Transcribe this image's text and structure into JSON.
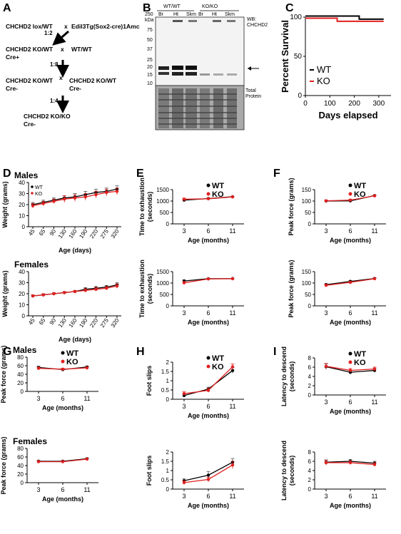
{
  "panels": {
    "A": "A",
    "B": "B",
    "C": "C",
    "D": "D",
    "E": "E",
    "F": "F",
    "G": "G",
    "H": "H",
    "I": "I"
  },
  "scheme": {
    "row1_left": "CHCHD2 lox/WT",
    "row1_x": "x",
    "row1_right": "Edil3Tg(Sox2-cre)1Amc",
    "ratio1": "1:2",
    "row2_left": "CHCHD2 KO/WT",
    "row2_x": "x",
    "row2_right": "WT/WT",
    "row2_left_sub": "Cre+",
    "ratio2": "1:8",
    "row3_left": "CHCHD2 KO/WT",
    "row3_x": "x",
    "row3_right": "CHCHD2 KO/WT",
    "row3_left_sub": "Cre-",
    "row3_right_sub": "Cre-",
    "ratio3": "1:4",
    "row4": "CHCHD2 KO/KO",
    "row4_sub": "Cre-"
  },
  "blot": {
    "group_wt": "WT/WT",
    "group_ko": "KO/KO",
    "lanes": [
      "Br",
      "Ht",
      "Skm",
      "Br",
      "Ht",
      "Skm"
    ],
    "kda_top": "250",
    "kda_label": "kDa",
    "markers": [
      "75",
      "50",
      "37",
      "25",
      "20",
      "15",
      "10"
    ],
    "wb_label_1": "WB:",
    "wb_label_2": "CHCHD2",
    "total_1": "Total",
    "total_2": "Protein"
  },
  "colors": {
    "wt": "#000000",
    "ko": "#e02020"
  },
  "chart_data": [
    {
      "id": "C",
      "type": "line",
      "title": "",
      "xlabel": "Days elapsed",
      "ylabel": "Percent Survival",
      "xlim": [
        0,
        350
      ],
      "ylim": [
        0,
        100
      ],
      "xticks": [
        0,
        100,
        200,
        300
      ],
      "yticks": [
        0,
        50,
        100
      ],
      "legend": "center-left",
      "series": [
        {
          "name": "WT",
          "color": "#000000",
          "x": [
            0,
            220,
            220,
            320
          ],
          "y": [
            100,
            100,
            96,
            96
          ]
        },
        {
          "name": "KO",
          "color": "#e02020",
          "x": [
            0,
            130,
            130,
            320
          ],
          "y": [
            100,
            100,
            96,
            96
          ]
        }
      ]
    },
    {
      "id": "D-males",
      "type": "line",
      "title": "Males",
      "xlabel": "Age (days)",
      "ylabel": "Weight (grams)",
      "categories": [
        "45",
        "65",
        "90",
        "130",
        "160",
        "190",
        "220",
        "275",
        "320"
      ],
      "ylim": [
        0,
        40
      ],
      "yticks": [
        0,
        10,
        20,
        30,
        40
      ],
      "legend": "top-left",
      "series": [
        {
          "name": "WT",
          "color": "#000000",
          "values": [
            20,
            22,
            24,
            26,
            27,
            29,
            31,
            32,
            34
          ],
          "err": [
            2,
            2,
            2,
            2,
            3,
            3,
            3,
            3,
            3
          ]
        },
        {
          "name": "KO",
          "color": "#e02020",
          "values": [
            19,
            21,
            23,
            25,
            26,
            27,
            29,
            31,
            32
          ],
          "err": [
            2,
            2,
            2,
            3,
            3,
            3,
            3,
            3,
            3
          ]
        }
      ]
    },
    {
      "id": "D-females",
      "type": "line",
      "title": "Females",
      "xlabel": "Age (days)",
      "ylabel": "Weight (grams)",
      "categories": [
        "45",
        "65",
        "90",
        "130",
        "160",
        "190",
        "220",
        "275",
        "320"
      ],
      "ylim": [
        0,
        40
      ],
      "yticks": [
        0,
        10,
        20,
        30,
        40
      ],
      "series": [
        {
          "name": "WT",
          "color": "#000000",
          "values": [
            18,
            19,
            20,
            21,
            22,
            24,
            25,
            26,
            28
          ],
          "err": [
            1,
            1,
            1,
            1,
            1,
            1.5,
            1.5,
            1.5,
            2
          ]
        },
        {
          "name": "KO",
          "color": "#e02020",
          "values": [
            18,
            19,
            20,
            21,
            22,
            23,
            24,
            25,
            27
          ],
          "err": [
            1,
            1,
            1,
            1,
            1,
            1.5,
            1.5,
            1.5,
            2
          ]
        }
      ]
    },
    {
      "id": "E-top",
      "type": "line",
      "title": "",
      "xlabel": "Age (months)",
      "ylabel": "Time to exhaustion (seconds)",
      "categories": [
        "3",
        "6",
        "11"
      ],
      "ylim": [
        0,
        1500
      ],
      "yticks": [
        0,
        500,
        1000,
        1500
      ],
      "legend": "top-right",
      "series": [
        {
          "name": "WT",
          "color": "#000000",
          "values": [
            1040,
            1110,
            1190
          ],
          "err": [
            50,
            30,
            20
          ]
        },
        {
          "name": "KO",
          "color": "#e02020",
          "values": [
            1080,
            1100,
            1180
          ],
          "err": [
            50,
            30,
            20
          ]
        }
      ]
    },
    {
      "id": "E-bottom",
      "type": "line",
      "title": "",
      "xlabel": "Age (months)",
      "ylabel": "Time to exhaustion (seconds)",
      "categories": [
        "3",
        "6",
        "11"
      ],
      "ylim": [
        0,
        1500
      ],
      "yticks": [
        0,
        500,
        1000,
        1500
      ],
      "series": [
        {
          "name": "WT",
          "color": "#000000",
          "values": [
            1090,
            1190,
            1195
          ],
          "err": [
            50,
            20,
            15
          ]
        },
        {
          "name": "KO",
          "color": "#e02020",
          "values": [
            1010,
            1180,
            1190
          ],
          "err": [
            60,
            20,
            15
          ]
        }
      ]
    },
    {
      "id": "F-top",
      "type": "line",
      "title": "",
      "xlabel": "Age (months)",
      "ylabel": "Peak force (grams)",
      "categories": [
        "3",
        "6",
        "11"
      ],
      "ylim": [
        0,
        150
      ],
      "yticks": [
        0,
        50,
        100,
        150
      ],
      "legend": "top-right",
      "series": [
        {
          "name": "WT",
          "color": "#000000",
          "values": [
            100,
            101,
            124
          ],
          "err": [
            4,
            4,
            3
          ]
        },
        {
          "name": "KO",
          "color": "#e02020",
          "values": [
            101,
            104,
            123
          ],
          "err": [
            4,
            4,
            3
          ]
        }
      ]
    },
    {
      "id": "F-bottom",
      "type": "line",
      "title": "",
      "xlabel": "Age (months)",
      "ylabel": "Peak force (grams)",
      "categories": [
        "3",
        "6",
        "11"
      ],
      "ylim": [
        0,
        150
      ],
      "yticks": [
        0,
        50,
        100,
        150
      ],
      "series": [
        {
          "name": "WT",
          "color": "#000000",
          "values": [
            93,
            107,
            120
          ],
          "err": [
            4,
            4,
            3
          ]
        },
        {
          "name": "KO",
          "color": "#e02020",
          "values": [
            90,
            103,
            119
          ],
          "err": [
            4,
            4,
            3
          ]
        }
      ]
    },
    {
      "id": "G-males",
      "type": "line",
      "title": "Males",
      "xlabel": "Age (months)",
      "ylabel": "Peak force (grams)",
      "categories": [
        "3",
        "6",
        "11"
      ],
      "ylim": [
        0,
        80
      ],
      "yticks": [
        0,
        20,
        40,
        60,
        80
      ],
      "legend": "top-right",
      "series": [
        {
          "name": "WT",
          "color": "#000000",
          "values": [
            56,
            51,
            57
          ],
          "err": [
            3,
            2,
            2
          ]
        },
        {
          "name": "KO",
          "color": "#e02020",
          "values": [
            54,
            52,
            55
          ],
          "err": [
            3,
            2,
            2
          ]
        }
      ]
    },
    {
      "id": "G-females",
      "type": "line",
      "title": "Females",
      "xlabel": "Age (months)",
      "ylabel": "Peak force (grams)",
      "categories": [
        "3",
        "6",
        "11"
      ],
      "ylim": [
        0,
        80
      ],
      "yticks": [
        0,
        20,
        40,
        60,
        80
      ],
      "series": [
        {
          "name": "WT",
          "color": "#000000",
          "values": [
            50,
            50,
            56
          ],
          "err": [
            2,
            2,
            2
          ]
        },
        {
          "name": "KO",
          "color": "#e02020",
          "values": [
            49,
            49,
            55
          ],
          "err": [
            2,
            2,
            2
          ]
        }
      ]
    },
    {
      "id": "H-top",
      "type": "line",
      "title": "",
      "xlabel": "Age (months)",
      "ylabel": "Foot slips",
      "categories": [
        "3",
        "6",
        "11"
      ],
      "ylim": [
        0,
        2.0
      ],
      "yticks": [
        0,
        0.5,
        1.0,
        1.5,
        2.0
      ],
      "legend": "top-right",
      "series": [
        {
          "name": "WT",
          "color": "#000000",
          "values": [
            0.2,
            0.55,
            1.55
          ],
          "err": [
            0.08,
            0.1,
            0.15
          ]
        },
        {
          "name": "KO",
          "color": "#e02020",
          "values": [
            0.3,
            0.48,
            1.75
          ],
          "err": [
            0.1,
            0.1,
            0.15
          ]
        }
      ]
    },
    {
      "id": "H-bottom",
      "type": "line",
      "title": "",
      "xlabel": "Age (months)",
      "ylabel": "Foot slips",
      "categories": [
        "3",
        "6",
        "11"
      ],
      "ylim": [
        0,
        2.0
      ],
      "yticks": [
        0,
        0.5,
        1.0,
        1.5,
        2.0
      ],
      "series": [
        {
          "name": "WT",
          "color": "#000000",
          "values": [
            0.45,
            0.75,
            1.45
          ],
          "err": [
            0.1,
            0.2,
            0.2
          ]
        },
        {
          "name": "KO",
          "color": "#e02020",
          "values": [
            0.35,
            0.52,
            1.3
          ],
          "err": [
            0.1,
            0.12,
            0.2
          ]
        }
      ]
    },
    {
      "id": "I-top",
      "type": "line",
      "title": "",
      "xlabel": "Age (months)",
      "ylabel": "Latency to descend (seconds)",
      "categories": [
        "3",
        "6",
        "11"
      ],
      "ylim": [
        0,
        8
      ],
      "yticks": [
        0,
        2,
        4,
        6,
        8
      ],
      "legend": "top-right",
      "series": [
        {
          "name": "WT",
          "color": "#000000",
          "values": [
            6.1,
            4.9,
            5.3
          ],
          "err": [
            0.6,
            0.4,
            0.4
          ]
        },
        {
          "name": "KO",
          "color": "#e02020",
          "values": [
            6.2,
            5.3,
            5.6
          ],
          "err": [
            0.6,
            0.4,
            0.4
          ]
        }
      ]
    },
    {
      "id": "I-bottom",
      "type": "line",
      "title": "",
      "xlabel": "Age (months)",
      "ylabel": "Latency to descend (seconds)",
      "categories": [
        "3",
        "6",
        "11"
      ],
      "ylim": [
        0,
        8
      ],
      "yticks": [
        0,
        2,
        4,
        6,
        8
      ],
      "series": [
        {
          "name": "WT",
          "color": "#000000",
          "values": [
            5.8,
            6.0,
            5.6
          ],
          "err": [
            0.5,
            0.4,
            0.4
          ]
        },
        {
          "name": "KO",
          "color": "#e02020",
          "values": [
            5.7,
            5.7,
            5.3
          ],
          "err": [
            0.5,
            0.4,
            0.4
          ]
        }
      ]
    }
  ]
}
